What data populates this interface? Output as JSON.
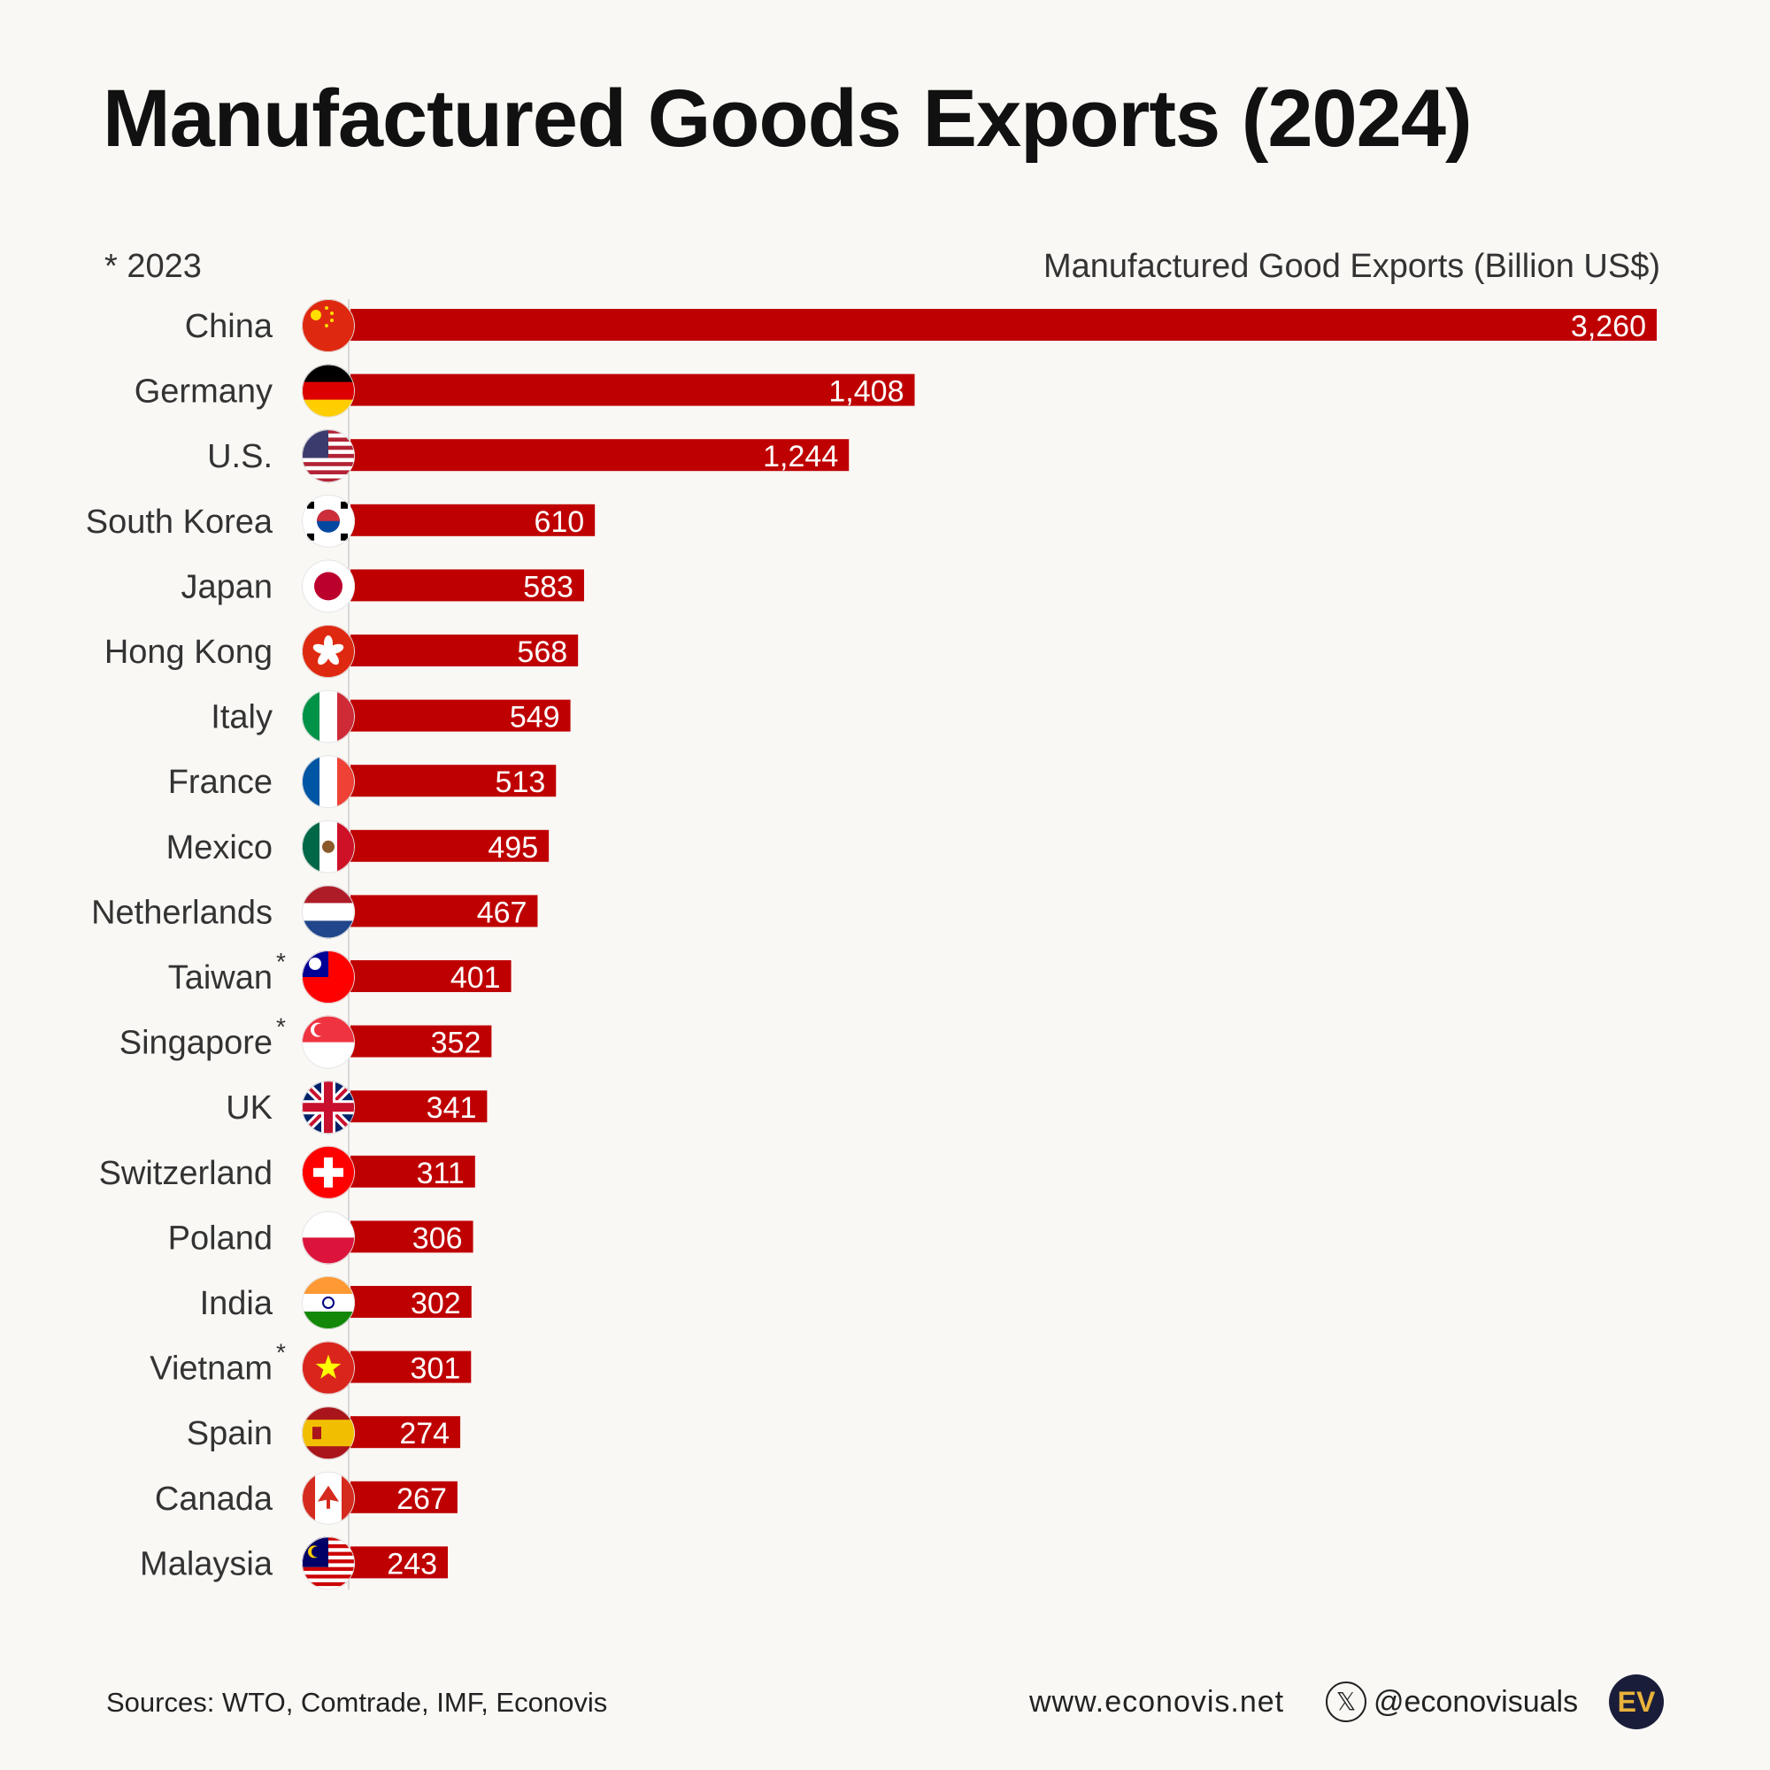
{
  "chart_data": {
    "type": "bar",
    "orientation": "horizontal",
    "title": "Manufactured Goods Exports (2024)",
    "xlabel": "Manufactured Good Exports (Billion US$)",
    "footnote": "* 2023",
    "categories": [
      "China",
      "Germany",
      "U.S.",
      "South Korea",
      "Japan",
      "Hong Kong",
      "Italy",
      "France",
      "Mexico",
      "Netherlands",
      "Taiwan",
      "Singapore",
      "UK",
      "Switzerland",
      "Poland",
      "India",
      "Vietnam",
      "Spain",
      "Canada",
      "Malaysia"
    ],
    "values": [
      3260,
      1408,
      1244,
      610,
      583,
      568,
      549,
      513,
      495,
      467,
      401,
      352,
      341,
      311,
      306,
      302,
      301,
      274,
      267,
      243
    ],
    "value_labels": [
      "3,260",
      "1,408",
      "1,244",
      "610",
      "583",
      "568",
      "549",
      "513",
      "495",
      "467",
      "401",
      "352",
      "341",
      "311",
      "306",
      "302",
      "301",
      "274",
      "267",
      "243"
    ],
    "footnoted": [
      false,
      false,
      false,
      false,
      false,
      false,
      false,
      false,
      false,
      false,
      true,
      true,
      false,
      false,
      false,
      false,
      true,
      false,
      false,
      false
    ],
    "footnote_marker": "*",
    "xlim": [
      0,
      3260
    ],
    "bar_color": "#bf0000"
  },
  "footer": {
    "sources": "Sources: WTO, Comtrade, IMF, Econovis",
    "website": "www.econovis.net",
    "x_icon_glyph": "𝕏",
    "handle": "@econovisuals",
    "logo_text": "EV"
  }
}
